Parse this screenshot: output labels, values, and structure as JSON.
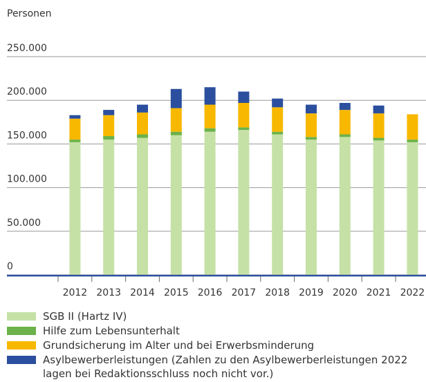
{
  "chart_data": {
    "type": "stacked_bar",
    "y_axis_label": "Personen",
    "categories": [
      "2012",
      "2013",
      "2014",
      "2015",
      "2016",
      "2017",
      "2018",
      "2019",
      "2020",
      "2021",
      "2022"
    ],
    "series": [
      {
        "name": "SGB II (Hartz IV)",
        "color": "#c6e1a6",
        "values": [
          152000,
          155000,
          157000,
          160000,
          164000,
          166000,
          161000,
          155000,
          158000,
          154000,
          152000
        ]
      },
      {
        "name": "Hilfe zum Lebensunterhalt",
        "color": "#6cb24a",
        "values": [
          3000,
          4000,
          4000,
          4000,
          4000,
          3000,
          3000,
          3000,
          3000,
          3000,
          3000
        ]
      },
      {
        "name": "Grundsicherung im Alter und bei Erwerbsminderung",
        "color": "#f8b800",
        "values": [
          24000,
          24000,
          25000,
          27000,
          27000,
          28000,
          28000,
          27000,
          28000,
          28000,
          29000
        ]
      },
      {
        "name": "Asylbewerberleistungen (Zahlen zu den Asylbewerberleistungen 2022 lagen bei Redaktionsschluss noch nicht vor.)",
        "color": "#2b4f9e",
        "values": [
          4000,
          6000,
          9000,
          22000,
          20000,
          13000,
          10000,
          10000,
          8000,
          9000,
          null
        ]
      }
    ],
    "ylim": [
      0,
      250000
    ],
    "yticks": [
      0,
      {
        "value": 50000,
        "label": "50.000"
      },
      {
        "value": 100000,
        "label": "100.000"
      },
      {
        "value": 150000,
        "label": "150.000"
      },
      {
        "value": 200000,
        "label": "200.000"
      },
      {
        "value": 250000,
        "label": "250.000"
      }
    ],
    "grid": true
  }
}
